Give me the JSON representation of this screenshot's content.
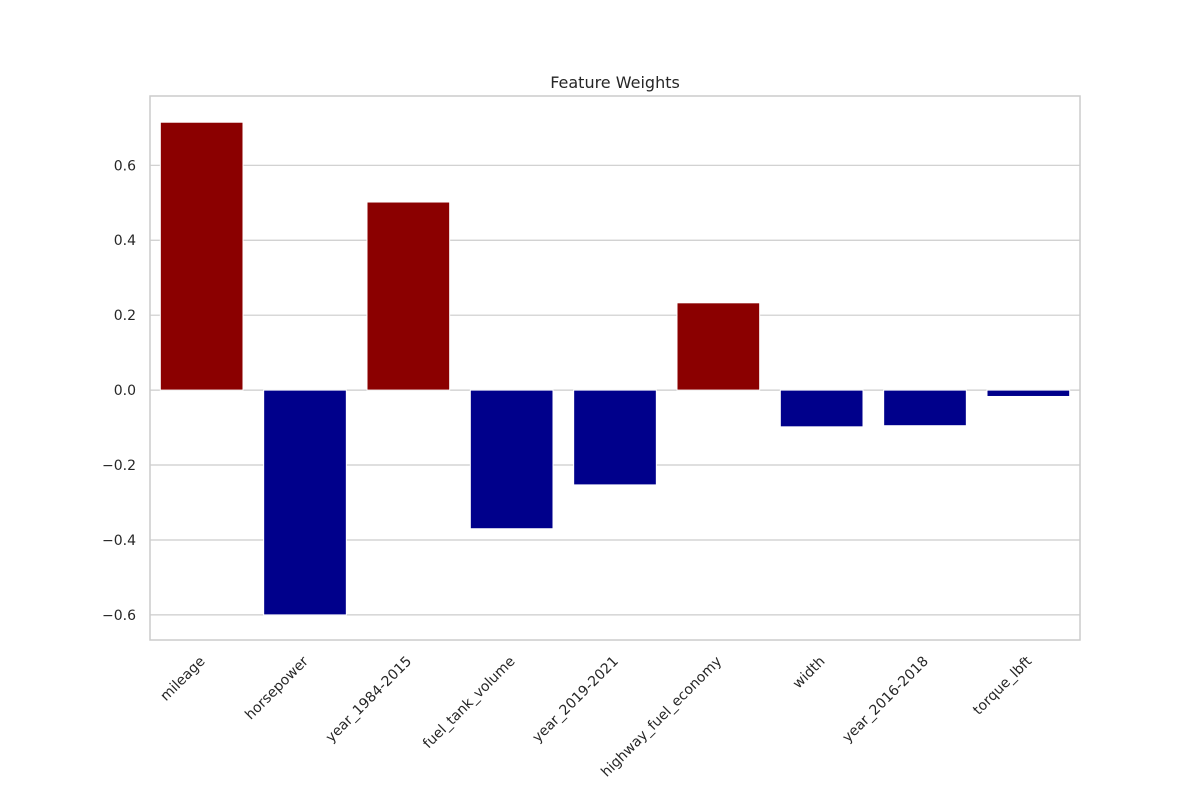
{
  "chart_data": {
    "type": "bar",
    "title": "Feature Weights",
    "xlabel": "",
    "ylabel": "",
    "categories": [
      "mileage",
      "horsepower",
      "year_1984-2015",
      "fuel_tank_volume",
      "year_2019-2021",
      "highway_fuel_economy",
      "width",
      "year_2016-2018",
      "torque_lbft"
    ],
    "values": [
      0.715,
      -0.6,
      0.502,
      -0.37,
      -0.253,
      0.233,
      -0.098,
      -0.095,
      -0.017
    ],
    "ylim": [
      -0.667,
      0.785
    ],
    "yticks": [
      -0.6,
      -0.4,
      -0.2,
      0.0,
      0.2,
      0.4,
      0.6
    ],
    "ytick_labels": [
      "−0.6",
      "−0.4",
      "−0.2",
      "0.0",
      "0.2",
      "0.4",
      "0.6"
    ],
    "grid": "horizontal",
    "colors": {
      "positive": "#8b0000",
      "negative": "#00008b",
      "grid": "#cccccc",
      "frame": "#cccccc"
    }
  }
}
